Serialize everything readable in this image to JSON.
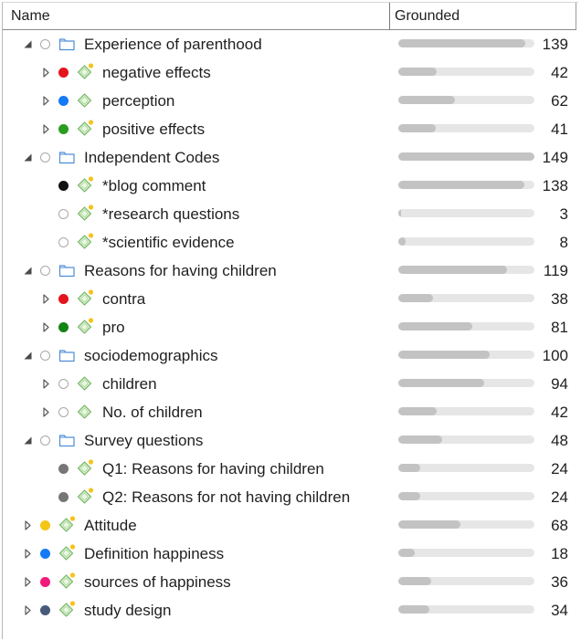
{
  "columns": {
    "name": "Name",
    "grounded": "Grounded"
  },
  "colors": {
    "red": "#e5131c",
    "blue": "#1479f5",
    "green": "#2a9d1f",
    "black": "#111111",
    "darkgreen": "#128412",
    "gray": "#767676",
    "yellow": "#f5c516",
    "pink": "#f01b7a",
    "slate": "#485a7a"
  },
  "max_grounded": 149,
  "rows": [
    {
      "label": "Experience of parenthood",
      "count": "139",
      "level": 0,
      "twisty": "expanded",
      "dot": "hollow",
      "icon": "folder-icon",
      "memo": false
    },
    {
      "label": "negative effects",
      "count": "42",
      "level": 1,
      "twisty": "collapsed",
      "dot": "#e5131c",
      "icon": "code-icon",
      "memo": true
    },
    {
      "label": "perception",
      "count": "62",
      "level": 1,
      "twisty": "collapsed",
      "dot": "#1479f5",
      "icon": "code-icon",
      "memo": false
    },
    {
      "label": "positive effects",
      "count": "41",
      "level": 1,
      "twisty": "collapsed",
      "dot": "#2a9d1f",
      "icon": "code-icon",
      "memo": true
    },
    {
      "label": "Independent Codes",
      "count": "149",
      "level": 0,
      "twisty": "expanded",
      "dot": "hollow",
      "icon": "folder-icon",
      "memo": false
    },
    {
      "label": "*blog comment",
      "count": "138",
      "level": 1,
      "twisty": "none",
      "dot": "#111111",
      "icon": "code-icon",
      "memo": true
    },
    {
      "label": "*research questions",
      "count": "3",
      "level": 1,
      "twisty": "none",
      "dot": "hollow",
      "icon": "code-icon",
      "memo": true
    },
    {
      "label": "*scientific evidence",
      "count": "8",
      "level": 1,
      "twisty": "none",
      "dot": "hollow",
      "icon": "code-icon",
      "memo": true
    },
    {
      "label": "Reasons for having children",
      "count": "119",
      "level": 0,
      "twisty": "expanded",
      "dot": "hollow",
      "icon": "folder-icon",
      "memo": false
    },
    {
      "label": "contra",
      "count": "38",
      "level": 1,
      "twisty": "collapsed",
      "dot": "#e5131c",
      "icon": "code-icon",
      "memo": true
    },
    {
      "label": "pro",
      "count": "81",
      "level": 1,
      "twisty": "collapsed",
      "dot": "#128412",
      "icon": "code-icon",
      "memo": true
    },
    {
      "label": "sociodemographics",
      "count": "100",
      "level": 0,
      "twisty": "expanded",
      "dot": "hollow",
      "icon": "folder-icon",
      "memo": false
    },
    {
      "label": "children",
      "count": "94",
      "level": 1,
      "twisty": "collapsed",
      "dot": "hollow",
      "icon": "code-icon",
      "memo": false
    },
    {
      "label": "No. of children",
      "count": "42",
      "level": 1,
      "twisty": "collapsed",
      "dot": "hollow",
      "icon": "code-icon",
      "memo": false
    },
    {
      "label": "Survey questions",
      "count": "48",
      "level": 0,
      "twisty": "expanded",
      "dot": "hollow",
      "icon": "folder-icon",
      "memo": false
    },
    {
      "label": "Q1: Reasons for having children",
      "count": "24",
      "level": 1,
      "twisty": "none",
      "dot": "#767676",
      "icon": "code-icon",
      "memo": true
    },
    {
      "label": "Q2: Reasons for not having children",
      "count": "24",
      "level": 1,
      "twisty": "none",
      "dot": "#767676",
      "icon": "code-icon",
      "memo": true
    },
    {
      "label": "Attitude",
      "count": "68",
      "level": 0,
      "twisty": "collapsed",
      "dot": "#f5c516",
      "icon": "code-icon",
      "memo": true
    },
    {
      "label": "Definition happiness",
      "count": "18",
      "level": 0,
      "twisty": "collapsed",
      "dot": "#1479f5",
      "icon": "code-icon",
      "memo": true
    },
    {
      "label": "sources of happiness",
      "count": "36",
      "level": 0,
      "twisty": "collapsed",
      "dot": "#f01b7a",
      "icon": "code-icon",
      "memo": true
    },
    {
      "label": "study design",
      "count": "34",
      "level": 0,
      "twisty": "collapsed",
      "dot": "#485a7a",
      "icon": "code-icon",
      "memo": true
    }
  ]
}
